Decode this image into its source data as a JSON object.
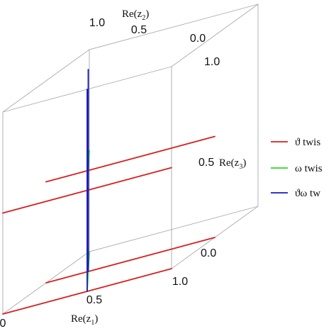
{
  "chart_data": {
    "type": "line",
    "projection": "3d",
    "box": true,
    "axes": {
      "x": {
        "label": "Re(z1)",
        "ticks": [
          "0",
          "0.5",
          "1.0"
        ],
        "range": [
          0,
          1
        ]
      },
      "y": {
        "label": "Re(z2)",
        "ticks": [
          "0.0",
          "0.5",
          "1.0"
        ],
        "range": [
          0,
          1
        ]
      },
      "z": {
        "label": "Re(z3)",
        "ticks": [
          "0.0",
          "0.5",
          "1.0"
        ],
        "range": [
          0,
          1
        ]
      }
    },
    "legend_position": "right",
    "series": [
      {
        "name": "ϑ twis",
        "color": "#d62020",
        "segments": [
          [
            [
              0,
              0.5,
              0
            ],
            [
              1,
              0.5,
              0
            ]
          ],
          [
            [
              0,
              0,
              0
            ],
            [
              1,
              0,
              0
            ]
          ],
          [
            [
              0,
              0.5,
              0.5
            ],
            [
              1,
              0.5,
              0.5
            ]
          ],
          [
            [
              0,
              0,
              0.5
            ],
            [
              1,
              0,
              0.5
            ]
          ]
        ]
      },
      {
        "name": "ω twis",
        "color": "#22dd22",
        "segments": [
          [
            [
              0,
              1,
              0
            ],
            [
              0.5,
              0,
              0
            ]
          ],
          [
            [
              0,
              1,
              0.5
            ],
            [
              0.5,
              0,
              0.5
            ]
          ]
        ]
      },
      {
        "name": "ϑω tw",
        "color": "#1a1ab8",
        "segments": [
          [
            [
              0.25,
              0.5,
              0
            ],
            [
              0.25,
              0.5,
              1
            ]
          ],
          [
            [
              0.5,
              0,
              0
            ],
            [
              0.5,
              0,
              1
            ]
          ]
        ]
      }
    ]
  },
  "colors": {
    "box": "#aaaaaa",
    "background": "#ffffff"
  }
}
